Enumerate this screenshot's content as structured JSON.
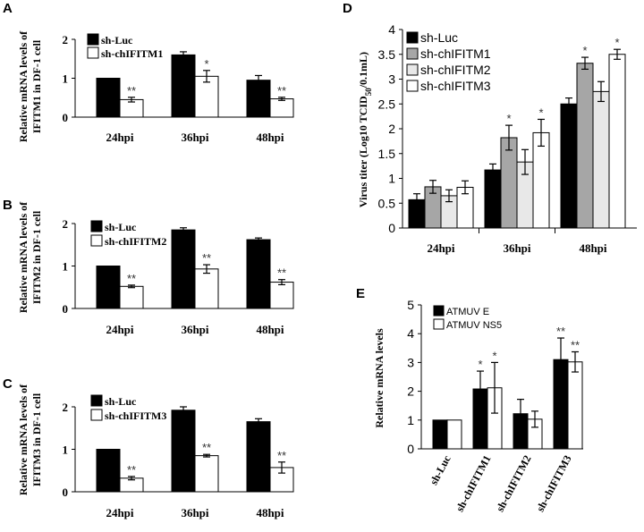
{
  "chart_data": [
    {
      "panel": "A",
      "type": "bar",
      "categories": [
        "24hpi",
        "36hpi",
        "48hpi"
      ],
      "series": [
        {
          "name": "sh-Luc",
          "values": [
            1.0,
            1.6,
            0.95
          ],
          "errors": [
            0.0,
            0.08,
            0.12
          ],
          "color": "#000000"
        },
        {
          "name": "sh-chIFITM1",
          "values": [
            0.45,
            1.05,
            0.47
          ],
          "errors": [
            0.06,
            0.15,
            0.04
          ],
          "color": "#ffffff"
        }
      ],
      "annotations": [
        {
          "category": 0,
          "series": 1,
          "text": "**"
        },
        {
          "category": 1,
          "series": 1,
          "text": "*"
        },
        {
          "category": 2,
          "series": 1,
          "text": "**"
        }
      ],
      "ylabel": "Relative mRNA levels of IFITM1 in DF-1 cell",
      "ylim": [
        0,
        2
      ],
      "yticks": [
        0,
        1,
        2
      ],
      "legend": "top-left"
    },
    {
      "panel": "B",
      "type": "bar",
      "categories": [
        "24hpi",
        "36hpi",
        "48hpi"
      ],
      "series": [
        {
          "name": "sh-Luc",
          "values": [
            1.0,
            1.85,
            1.62
          ],
          "errors": [
            0.0,
            0.05,
            0.04
          ],
          "color": "#000000"
        },
        {
          "name": "sh-chIFITM2",
          "values": [
            0.52,
            0.93,
            0.62
          ],
          "errors": [
            0.03,
            0.1,
            0.06
          ],
          "color": "#ffffff"
        }
      ],
      "annotations": [
        {
          "category": 0,
          "series": 1,
          "text": "**"
        },
        {
          "category": 1,
          "series": 1,
          "text": "**"
        },
        {
          "category": 2,
          "series": 1,
          "text": "**"
        }
      ],
      "ylabel": "Relative mRNA levels of IFITM2 in DF-1 cell",
      "ylim": [
        0,
        2
      ],
      "yticks": [
        0,
        1,
        2
      ],
      "legend": "top-left"
    },
    {
      "panel": "C",
      "type": "bar",
      "categories": [
        "24hpi",
        "36hpi",
        "48hpi"
      ],
      "series": [
        {
          "name": "sh-Luc",
          "values": [
            1.0,
            1.92,
            1.65
          ],
          "errors": [
            0.0,
            0.08,
            0.07
          ],
          "color": "#000000"
        },
        {
          "name": "sh-chIFITM3",
          "values": [
            0.32,
            0.85,
            0.57
          ],
          "errors": [
            0.04,
            0.03,
            0.13
          ],
          "color": "#ffffff"
        }
      ],
      "annotations": [
        {
          "category": 0,
          "series": 1,
          "text": "**"
        },
        {
          "category": 1,
          "series": 1,
          "text": "**"
        },
        {
          "category": 2,
          "series": 1,
          "text": "**"
        }
      ],
      "ylabel": "Relative mRNA levels of IFITM3 in DF-1 cell",
      "ylim": [
        0,
        2
      ],
      "yticks": [
        0,
        1,
        2
      ],
      "legend": "top-left"
    },
    {
      "panel": "D",
      "type": "bar",
      "categories": [
        "24hpi",
        "36hpi",
        "48hpi"
      ],
      "series": [
        {
          "name": "sh-Luc",
          "values": [
            0.57,
            1.17,
            2.5
          ],
          "errors": [
            0.12,
            0.12,
            0.12
          ],
          "color": "#000000"
        },
        {
          "name": "sh-chIFITM1",
          "values": [
            0.83,
            1.82,
            3.32
          ],
          "errors": [
            0.13,
            0.25,
            0.12
          ],
          "color": "#a6a6a6"
        },
        {
          "name": "sh-chIFITM2",
          "values": [
            0.65,
            1.33,
            2.75
          ],
          "errors": [
            0.12,
            0.25,
            0.2
          ],
          "color": "#e8e8e8"
        },
        {
          "name": "sh-chIFITM3",
          "values": [
            0.82,
            1.92,
            3.5
          ],
          "errors": [
            0.13,
            0.27,
            0.1
          ],
          "color": "#ffffff"
        }
      ],
      "annotations": [
        {
          "category": 1,
          "series": 1,
          "text": "*"
        },
        {
          "category": 1,
          "series": 3,
          "text": "*"
        },
        {
          "category": 2,
          "series": 1,
          "text": "*"
        },
        {
          "category": 2,
          "series": 3,
          "text": "*"
        }
      ],
      "ylabel": "Virus titer (Log10 TCID50/0.1mL)",
      "ylim": [
        0,
        4
      ],
      "yticks": [
        0,
        0.5,
        1,
        1.5,
        2,
        2.5,
        3,
        3.5,
        4
      ],
      "legend": "top-left"
    },
    {
      "panel": "E",
      "type": "bar",
      "categories": [
        "sh-Luc",
        "sh-chIFITM1",
        "sh-chIFITM2",
        "sh-chIFITM3"
      ],
      "series": [
        {
          "name": "ATMUV E",
          "values": [
            1.0,
            2.08,
            1.22,
            3.1
          ],
          "errors": [
            0.0,
            0.62,
            0.5,
            0.75
          ],
          "color": "#000000"
        },
        {
          "name": "ATMUV NS5",
          "values": [
            1.0,
            2.12,
            1.03,
            3.02
          ],
          "errors": [
            0.0,
            0.88,
            0.28,
            0.35
          ],
          "color": "#ffffff"
        }
      ],
      "annotations": [
        {
          "category": 1,
          "series": 0,
          "text": "*"
        },
        {
          "category": 1,
          "series": 1,
          "text": "*"
        },
        {
          "category": 3,
          "series": 0,
          "text": "**"
        },
        {
          "category": 3,
          "series": 1,
          "text": "**"
        }
      ],
      "ylabel": "Relative mRNA levels",
      "ylim": [
        0,
        5
      ],
      "yticks": [
        0,
        1,
        2,
        3,
        4,
        5
      ],
      "legend": "top-left"
    }
  ]
}
